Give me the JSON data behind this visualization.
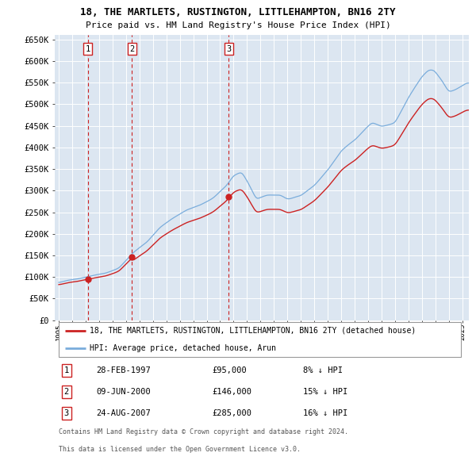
{
  "title": "18, THE MARTLETS, RUSTINGTON, LITTLEHAMPTON, BN16 2TY",
  "subtitle": "Price paid vs. HM Land Registry's House Price Index (HPI)",
  "bg_color": "#dce6f1",
  "grid_color": "#ffffff",
  "hpi_color": "#7aaddc",
  "property_color": "#cc2222",
  "dashed_line_color": "#cc2222",
  "ylim": [
    0,
    660000
  ],
  "yticks": [
    0,
    50000,
    100000,
    150000,
    200000,
    250000,
    300000,
    350000,
    400000,
    450000,
    500000,
    550000,
    600000,
    650000
  ],
  "xlim_start": 1994.7,
  "xlim_end": 2025.5,
  "purchases": [
    {
      "label": "1",
      "date_decimal": 1997.15,
      "price": 95000,
      "date_str": "28-FEB-1997",
      "pct": "8%"
    },
    {
      "label": "2",
      "date_decimal": 2000.44,
      "price": 146000,
      "date_str": "09-JUN-2000",
      "pct": "15%"
    },
    {
      "label": "3",
      "date_decimal": 2007.65,
      "price": 285000,
      "date_str": "24-AUG-2007",
      "pct": "16%"
    }
  ],
  "legend_property": "18, THE MARTLETS, RUSTINGTON, LITTLEHAMPTON, BN16 2TY (detached house)",
  "legend_hpi": "HPI: Average price, detached house, Arun",
  "footnote_line1": "Contains HM Land Registry data © Crown copyright and database right 2024.",
  "footnote_line2": "This data is licensed under the Open Government Licence v3.0.",
  "hpi_anchors_t": [
    1995.0,
    1996.0,
    1997.15,
    1998.5,
    1999.5,
    2000.5,
    2001.5,
    2002.5,
    2003.5,
    2004.5,
    2005.5,
    2006.5,
    2007.5,
    2008.0,
    2008.6,
    2009.2,
    2009.7,
    2010.5,
    2011.5,
    2012.0,
    2013.0,
    2014.0,
    2015.0,
    2016.0,
    2017.0,
    2017.8,
    2018.3,
    2019.0,
    2020.0,
    2021.0,
    2022.0,
    2022.5,
    2022.9,
    2023.5,
    2024.0,
    2024.5,
    2025.3
  ],
  "hpi_anchors_v": [
    87000,
    93000,
    103000,
    113000,
    126000,
    160000,
    183000,
    218000,
    242000,
    260000,
    270000,
    288000,
    318000,
    340000,
    348000,
    315000,
    283000,
    292000,
    293000,
    283000,
    288000,
    312000,
    348000,
    392000,
    418000,
    445000,
    460000,
    450000,
    458000,
    515000,
    562000,
    577000,
    577000,
    553000,
    528000,
    533000,
    548000
  ]
}
